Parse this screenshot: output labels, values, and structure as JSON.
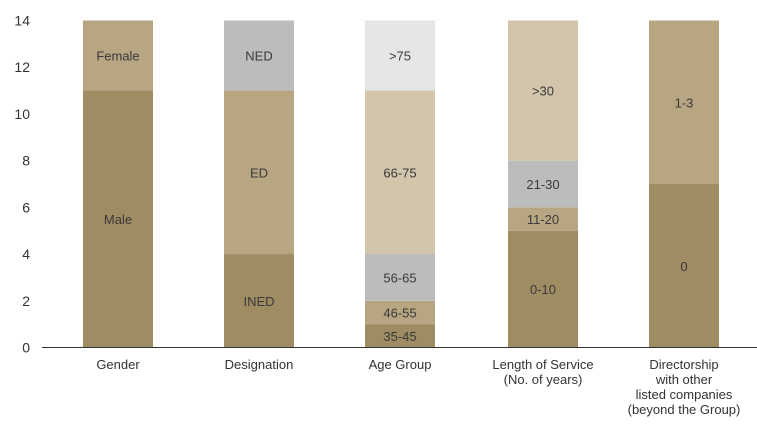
{
  "chart_data": {
    "type": "bar",
    "stacked": true,
    "title": "",
    "xlabel": "",
    "ylabel": "",
    "ylim": [
      0,
      14
    ],
    "yticks": [
      0,
      2,
      4,
      6,
      8,
      10,
      12,
      14
    ],
    "grid": false,
    "legend": "none",
    "categories": [
      {
        "label": [
          "Gender"
        ],
        "segments": [
          {
            "name": "Male",
            "value": 11,
            "color": "#a08c63"
          },
          {
            "name": "Female",
            "value": 3,
            "color": "#b8a582"
          }
        ]
      },
      {
        "label": [
          "Designation"
        ],
        "segments": [
          {
            "name": "INED",
            "value": 4,
            "color": "#a08c63"
          },
          {
            "name": "ED",
            "value": 7,
            "color": "#b8a582"
          },
          {
            "name": "NED",
            "value": 3,
            "color": "#bdbcbd"
          }
        ]
      },
      {
        "label": [
          "Age Group"
        ],
        "segments": [
          {
            "name": "35-45",
            "value": 1,
            "color": "#a08c63"
          },
          {
            "name": "46-55",
            "value": 1,
            "color": "#b8a582"
          },
          {
            "name": "56-65",
            "value": 2,
            "color": "#bdbcbd"
          },
          {
            "name": "66-75",
            "value": 7,
            "color": "#d3c4ac"
          },
          {
            "name": ">75",
            "value": 3,
            "color": "#e6e6e6"
          }
        ]
      },
      {
        "label": [
          "Length of Service",
          "(No. of years)"
        ],
        "segments": [
          {
            "name": "0-10",
            "value": 5,
            "color": "#a08c63"
          },
          {
            "name": "11-20",
            "value": 1,
            "color": "#b8a582"
          },
          {
            "name": "21-30",
            "value": 2,
            "color": "#bdbcbd"
          },
          {
            "name": ">30",
            "value": 6,
            "color": "#d3c4ac"
          }
        ]
      },
      {
        "label": [
          "Directorship",
          "with other",
          "listed companies",
          "(beyond the Group)"
        ],
        "segments": [
          {
            "name": "0",
            "value": 7,
            "color": "#a08c63"
          },
          {
            "name": "1-3",
            "value": 7,
            "color": "#b8a582"
          }
        ]
      }
    ]
  }
}
